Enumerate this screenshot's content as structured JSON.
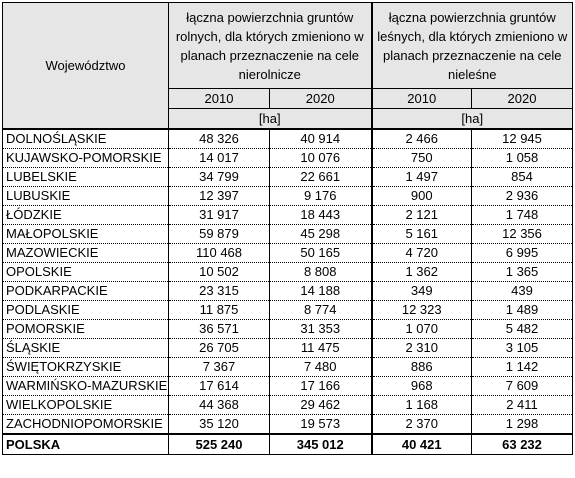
{
  "header": {
    "voivodeship": "Województwo",
    "group1": "łączna powierzchnia gruntów rolnych, dla których zmieniono w planach przeznaczenie na cele nierolnicze",
    "group2": "łączna powierzchnia gruntów leśnych, dla których zmieniono w planach przeznaczenie na cele nieleśne",
    "years": [
      "2010",
      "2020",
      "2010",
      "2020"
    ],
    "unit": "[ha]"
  },
  "rows": [
    {
      "name": "DOLNOŚLĄSKIE",
      "v": [
        "48 326",
        "40 914",
        "2 466",
        "12 945"
      ]
    },
    {
      "name": "KUJAWSKO-POMORSKIE",
      "v": [
        "14 017",
        "10 076",
        "750",
        "1 058"
      ]
    },
    {
      "name": "LUBELSKIE",
      "v": [
        "34 799",
        "22 661",
        "1 497",
        "854"
      ]
    },
    {
      "name": "LUBUSKIE",
      "v": [
        "12 397",
        "9 176",
        "900",
        "2 936"
      ]
    },
    {
      "name": "ŁÓDZKIE",
      "v": [
        "31 917",
        "18 443",
        "2 121",
        "1 748"
      ]
    },
    {
      "name": "MAŁOPOLSKIE",
      "v": [
        "59 879",
        "45 298",
        "5 161",
        "12 356"
      ]
    },
    {
      "name": "MAZOWIECKIE",
      "v": [
        "110 468",
        "50 165",
        "4 720",
        "6 995"
      ]
    },
    {
      "name": "OPOLSKIE",
      "v": [
        "10 502",
        "8 808",
        "1 362",
        "1 365"
      ]
    },
    {
      "name": "PODKARPACKIE",
      "v": [
        "23 315",
        "14 188",
        "349",
        "439"
      ]
    },
    {
      "name": "PODLASKIE",
      "v": [
        "11 875",
        "8 774",
        "12 323",
        "1 489"
      ]
    },
    {
      "name": "POMORSKIE",
      "v": [
        "36 571",
        "31 353",
        "1 070",
        "5 482"
      ]
    },
    {
      "name": "ŚLĄSKIE",
      "v": [
        "26 705",
        "11 475",
        "2 310",
        "3 105"
      ]
    },
    {
      "name": "ŚWIĘTOKRZYSKIE",
      "v": [
        "7 367",
        "7 480",
        "886",
        "1 142"
      ]
    },
    {
      "name": "WARMIŃSKO-MAZURSKIE",
      "v": [
        "17 614",
        "17 166",
        "968",
        "7 609"
      ]
    },
    {
      "name": "WIELKOPOLSKIE",
      "v": [
        "44 368",
        "29 462",
        "1 168",
        "2 411"
      ]
    },
    {
      "name": "ZACHODNIOPOMORSKIE",
      "v": [
        "35 120",
        "19 573",
        "2 370",
        "1 298"
      ]
    }
  ],
  "total": {
    "name": "POLSKA",
    "v": [
      "525 240",
      "345 012",
      "40 421",
      "63 232"
    ]
  }
}
